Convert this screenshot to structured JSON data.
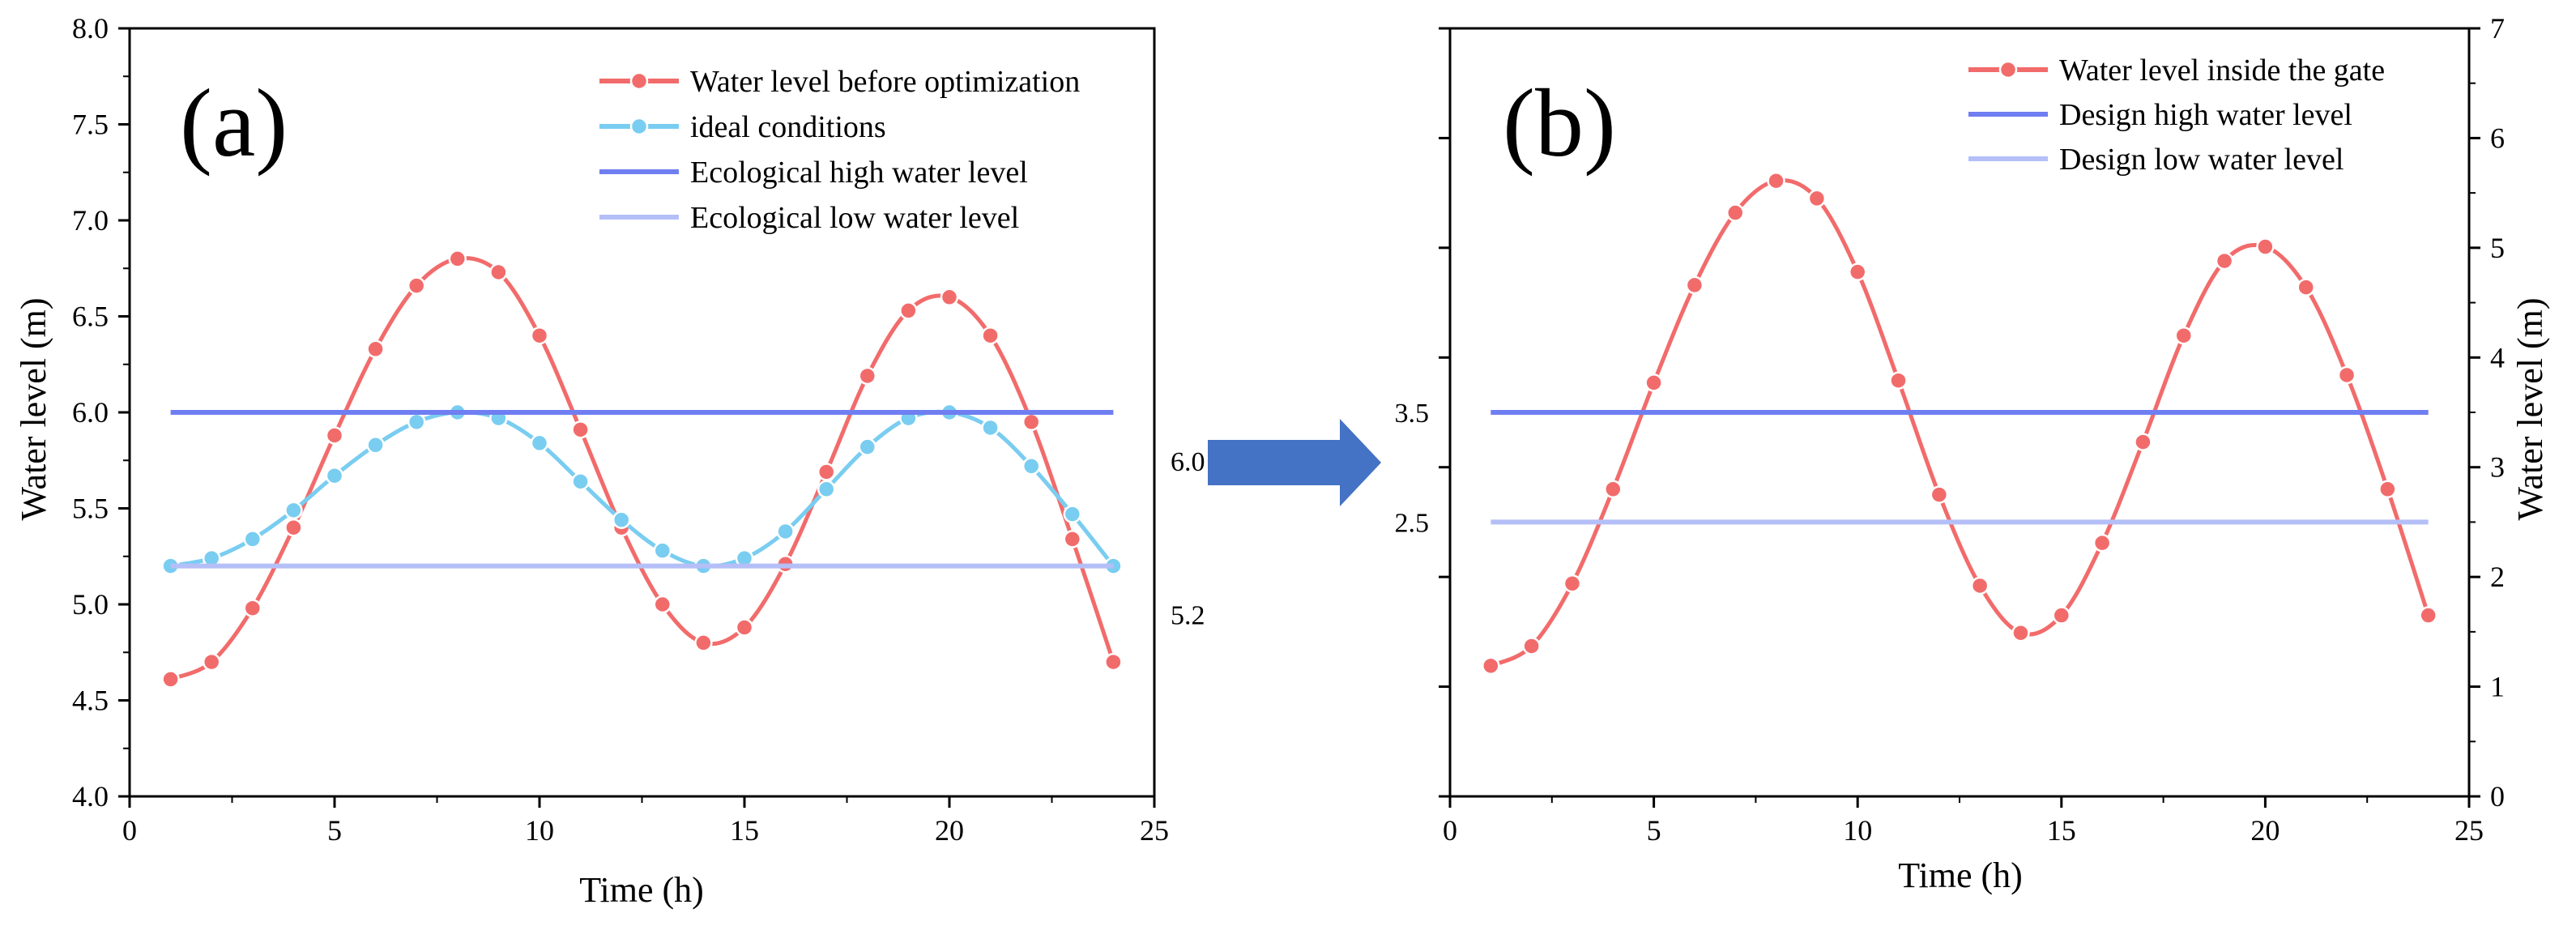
{
  "figure": {
    "arrow_color": "#4472c4"
  },
  "chart_data": [
    {
      "panel": "(a)",
      "type": "line",
      "xlabel": "Time (h)",
      "ylabel": "Water level (m)",
      "xlim": [
        0,
        25
      ],
      "ylim": [
        4.0,
        8.0
      ],
      "x_ticks": [
        0,
        5,
        10,
        15,
        20,
        25
      ],
      "y_ticks": [
        4.0,
        4.5,
        5.0,
        5.5,
        6.0,
        6.5,
        7.0,
        7.5,
        8.0
      ],
      "x_tick_labels": [
        "0",
        "5",
        "10",
        "15",
        "20",
        "25"
      ],
      "y_tick_labels": [
        "4.0",
        "4.5",
        "5.0",
        "5.5",
        "6.0",
        "6.5",
        "7.0",
        "7.5",
        "8.0"
      ],
      "legend_position": "top-right",
      "series": [
        {
          "name": "Water level before optimization",
          "kind": "line-markers",
          "color": "#f26b6b",
          "x": [
            1,
            2,
            3,
            4,
            5,
            6,
            7,
            8,
            9,
            10,
            11,
            12,
            13,
            14,
            15,
            16,
            17,
            18,
            19,
            20,
            21,
            22,
            23,
            24
          ],
          "values": [
            4.61,
            4.7,
            4.98,
            5.4,
            5.88,
            6.33,
            6.66,
            6.8,
            6.73,
            6.4,
            5.91,
            5.4,
            5.0,
            4.8,
            4.88,
            5.21,
            5.69,
            6.19,
            6.53,
            6.6,
            6.4,
            5.95,
            5.34,
            4.7
          ]
        },
        {
          "name": "ideal conditions",
          "kind": "line-markers",
          "color": "#79cdf0",
          "x": [
            1,
            2,
            3,
            4,
            5,
            6,
            7,
            8,
            9,
            10,
            11,
            12,
            13,
            14,
            15,
            16,
            17,
            18,
            19,
            20,
            21,
            22,
            23,
            24
          ],
          "values": [
            5.2,
            5.24,
            5.34,
            5.49,
            5.67,
            5.83,
            5.95,
            6.0,
            5.97,
            5.84,
            5.64,
            5.44,
            5.28,
            5.2,
            5.24,
            5.38,
            5.6,
            5.82,
            5.97,
            6.0,
            5.92,
            5.72,
            5.47,
            5.2
          ]
        },
        {
          "name": "Ecological high water level",
          "kind": "hline",
          "color": "#6f7ef0",
          "x": [
            1,
            24
          ],
          "values": [
            6.0,
            6.0
          ]
        },
        {
          "name": "Ecological low water level",
          "kind": "hline",
          "color": "#b5bff7",
          "x": [
            1,
            24
          ],
          "values": [
            5.2,
            5.2
          ]
        }
      ],
      "side_labels": [
        {
          "text": "6.0",
          "value": 6.0
        },
        {
          "text": "5.2",
          "value": 5.2
        }
      ]
    },
    {
      "panel": "(b)",
      "type": "line",
      "xlabel": "Time (h)",
      "ylabel": "Water level (m)",
      "xlim": [
        0,
        25
      ],
      "ylim": [
        0,
        7
      ],
      "x_ticks": [
        0,
        5,
        10,
        15,
        20,
        25
      ],
      "y_ticks": [
        0,
        1,
        2,
        3,
        4,
        5,
        6,
        7
      ],
      "x_tick_labels": [
        "0",
        "5",
        "10",
        "15",
        "20",
        "25"
      ],
      "y_tick_labels": [
        "0",
        "1",
        "2",
        "3",
        "4",
        "5",
        "6",
        "7"
      ],
      "legend_position": "top-right",
      "series": [
        {
          "name": "Water level inside the gate",
          "kind": "line-markers",
          "color": "#f26b6b",
          "x": [
            1,
            2,
            3,
            4,
            5,
            6,
            7,
            8,
            9,
            10,
            11,
            12,
            13,
            14,
            15,
            16,
            17,
            18,
            19,
            20,
            21,
            22,
            23,
            24
          ],
          "values": [
            1.19,
            1.37,
            1.94,
            2.8,
            3.77,
            4.66,
            5.32,
            5.61,
            5.45,
            4.78,
            3.79,
            2.75,
            1.92,
            1.49,
            1.65,
            2.31,
            3.23,
            4.2,
            4.88,
            5.01,
            4.64,
            3.84,
            2.8,
            1.65
          ]
        },
        {
          "name": "Design high water level",
          "kind": "hline",
          "color": "#6f7ef0",
          "x": [
            1,
            24
          ],
          "values": [
            3.5,
            3.5
          ]
        },
        {
          "name": "Design low water level",
          "kind": "hline",
          "color": "#b5bff7",
          "x": [
            1,
            24
          ],
          "values": [
            2.5,
            2.5
          ]
        }
      ],
      "left_labels": [
        {
          "text": "3.5",
          "value": 3.5
        },
        {
          "text": "2.5",
          "value": 2.5
        }
      ]
    }
  ]
}
